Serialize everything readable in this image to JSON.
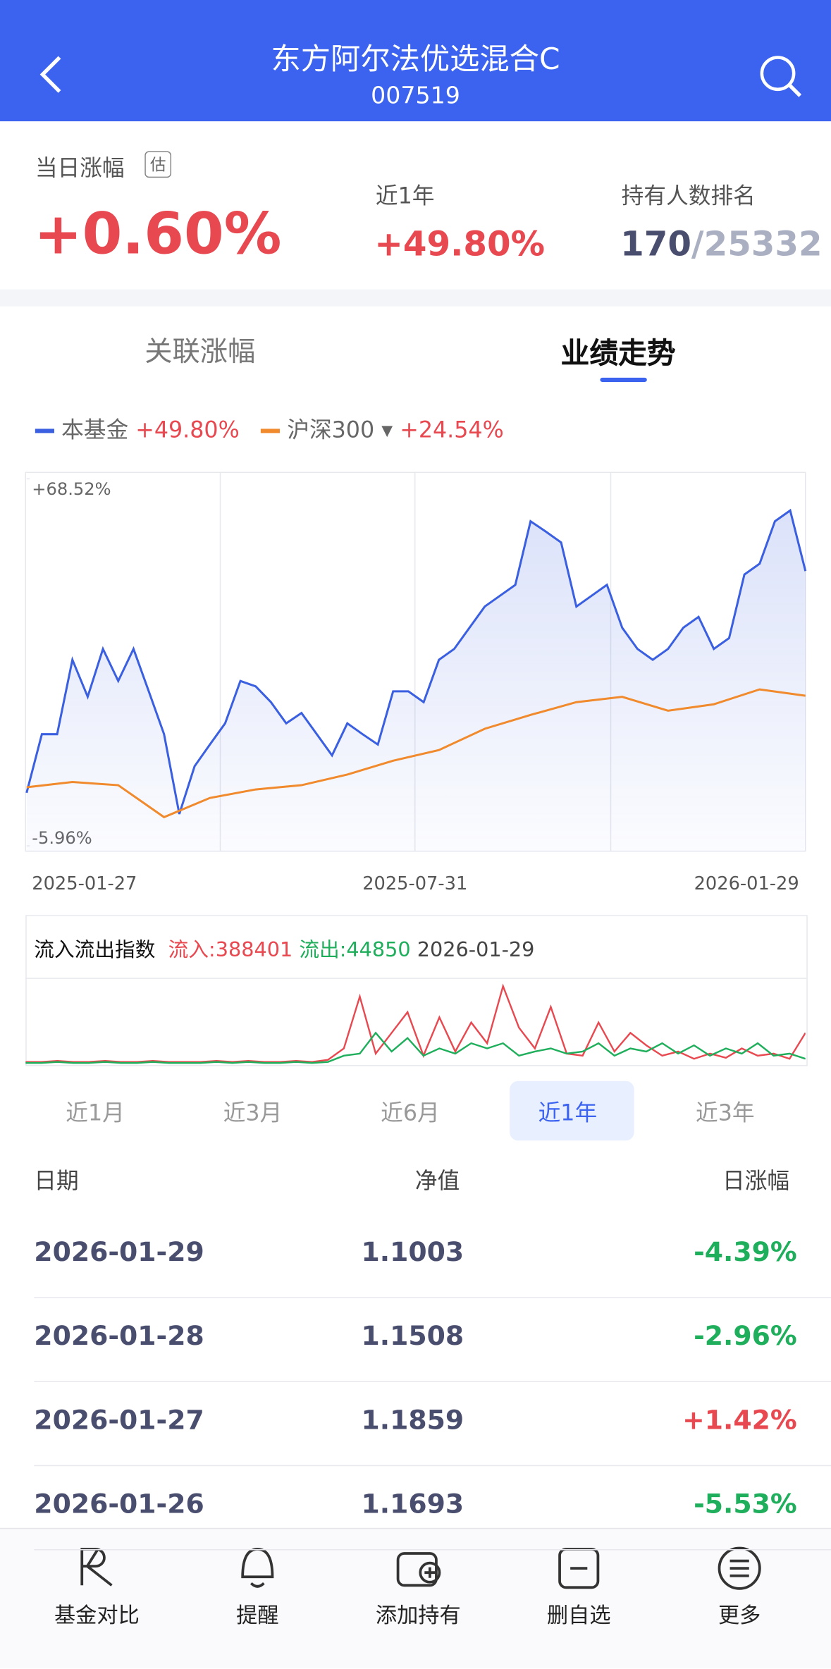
{
  "header": {
    "title": "东方阿尔法优选混合C",
    "code": "007519"
  },
  "summary": {
    "day_label": "当日涨幅",
    "est": "估",
    "day_value": "+0.60%",
    "year_label": "近1年",
    "year_value": "+49.80%",
    "rank_label": "持有人数排名",
    "rank": "170",
    "rank_total": "/25332"
  },
  "tabs": [
    "关联涨幅",
    "业绩走势"
  ],
  "legend": [
    {
      "name": "本基金",
      "value": "+49.80%"
    },
    {
      "name": "沪深300",
      "value": "+24.54%"
    }
  ],
  "chart_data": {
    "type": "line",
    "ylim": [
      -5.96,
      68.52
    ],
    "yticks": [
      {
        "value": 68.52,
        "label": "+68.52%"
      },
      {
        "value": -5.96,
        "label": "-5.96%"
      }
    ],
    "xlabels": [
      "2025-01-27",
      "2025-07-31",
      "2026-01-29"
    ],
    "series": [
      {
        "name": "本基金",
        "color": "#3a5fe0",
        "values": [
          4.8,
          16.7,
          16.7,
          31.8,
          24.3,
          34.0,
          27.5,
          34.0,
          25.4,
          16.7,
          0.5,
          10.2,
          14.6,
          18.9,
          27.5,
          26.4,
          23.2,
          18.9,
          21.0,
          16.7,
          12.4,
          18.9,
          16.7,
          14.6,
          25.4,
          25.4,
          23.2,
          31.8,
          34.0,
          38.3,
          42.6,
          44.8,
          47.0,
          59.9,
          57.8,
          55.6,
          42.6,
          44.8,
          47.0,
          38.3,
          34.0,
          31.8,
          34.0,
          38.3,
          40.5,
          34.0,
          36.2,
          49.1,
          51.3,
          59.9,
          62.1,
          49.8
        ]
      },
      {
        "name": "沪深300",
        "color": "#f08a2c",
        "values": [
          5.92,
          7.0,
          6.35,
          -0.13,
          3.76,
          5.49,
          6.35,
          8.51,
          11.32,
          13.48,
          17.8,
          20.61,
          23.2,
          24.28,
          21.47,
          22.77,
          25.79,
          24.5
        ]
      }
    ]
  },
  "flow": {
    "title": "流入流出指数",
    "in": "流入:388401",
    "out": "流出:44850",
    "date": "2026-01-29",
    "ylim": [
      0,
      80
    ],
    "series": [
      {
        "color": "#e8484f",
        "values": [
          2,
          2,
          3,
          2,
          2,
          3,
          2,
          2,
          3,
          2,
          2,
          2,
          3,
          2,
          3,
          2,
          2,
          3,
          2,
          4,
          15,
          65,
          10,
          30,
          50,
          8,
          45,
          12,
          40,
          20,
          75,
          35,
          15,
          55,
          10,
          8,
          40,
          12,
          30,
          18,
          8,
          12,
          5,
          10,
          6,
          15,
          8,
          10,
          5,
          30
        ]
      },
      {
        "color": "#1fae5b",
        "values": [
          1,
          1,
          2,
          1,
          1,
          2,
          1,
          1,
          2,
          1,
          1,
          1,
          2,
          1,
          2,
          1,
          1,
          2,
          1,
          2,
          8,
          10,
          30,
          12,
          25,
          8,
          15,
          10,
          20,
          15,
          20,
          8,
          12,
          15,
          10,
          12,
          20,
          8,
          15,
          12,
          20,
          10,
          18,
          8,
          15,
          10,
          20,
          8,
          10,
          5
        ]
      }
    ]
  },
  "periods": [
    "近1月",
    "近3月",
    "近6月",
    "近1年",
    "近3年"
  ],
  "table": {
    "headers": [
      "日期",
      "净值",
      "日涨幅"
    ],
    "rows": [
      [
        "2026-01-29",
        "1.1003",
        "-4.39%"
      ],
      [
        "2026-01-28",
        "1.1508",
        "-2.96%"
      ],
      [
        "2026-01-27",
        "1.1859",
        "+1.42%"
      ],
      [
        "2026-01-26",
        "1.1693",
        "-5.53%"
      ]
    ]
  },
  "nav": [
    "基金对比",
    "提醒",
    "添加持有",
    "删自选",
    "更多"
  ]
}
